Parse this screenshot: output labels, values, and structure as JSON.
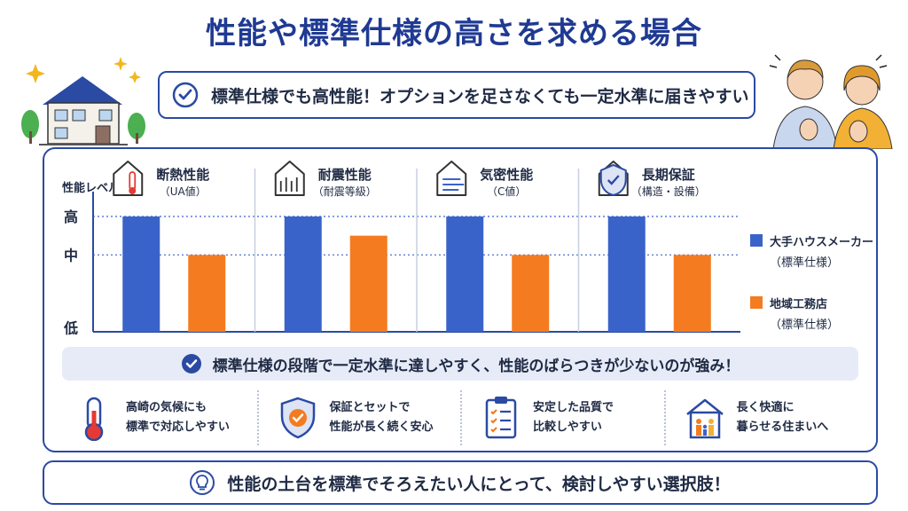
{
  "title": "性能や標準仕様の高さを求める場合",
  "subtitle": "標準仕様でも高性能！オプションを足さなくても一定水準に届きやすい",
  "colors": {
    "primary": "#2b4aa3",
    "brand_blue": "#3a63c9",
    "brand_orange": "#f47b20"
  },
  "chart_data": {
    "type": "bar",
    "ylabel": "性能レベル",
    "y_ticks": [
      "低",
      "中",
      "高"
    ],
    "ylim": [
      0,
      3
    ],
    "categories": [
      {
        "label": "断熱性能",
        "sub": "（UA値）",
        "icon": "house-thermometer-icon"
      },
      {
        "label": "耐震性能",
        "sub": "（耐震等級）",
        "icon": "house-earthquake-icon"
      },
      {
        "label": "気密性能",
        "sub": "（C値）",
        "icon": "house-airflow-icon"
      },
      {
        "label": "長期保証",
        "sub": "（構造・設備）",
        "icon": "shield-check-icon"
      }
    ],
    "series": [
      {
        "name": "大手ハウスメーカー",
        "sub": "（標準仕様）",
        "color": "#3a63c9",
        "values": [
          3,
          3,
          3,
          3
        ]
      },
      {
        "name": "地域工務店",
        "sub": "（標準仕様）",
        "color": "#f47b20",
        "values": [
          2,
          2.5,
          2,
          2
        ]
      }
    ],
    "grid": "dotted-horizontal",
    "legend": "right"
  },
  "strip_text": "標準仕様の段階で一定水準に達しやすく、性能のばらつきが少ないのが強み！",
  "features": [
    {
      "icon": "thermometer-icon",
      "line1": "高崎の気候にも",
      "line2": "標準で対応しやすい"
    },
    {
      "icon": "shield-heart-icon",
      "line1": "保証とセットで",
      "line2": "性能が長く続く安心"
    },
    {
      "icon": "checklist-icon",
      "line1": "安定した品質で",
      "line2": "比較しやすい"
    },
    {
      "icon": "family-house-icon",
      "line1": "長く快適に",
      "line2": "暮らせる住まいへ"
    }
  ],
  "bottom_text": "性能の土台を標準でそろえたい人にとって、検討しやすい選択肢！"
}
